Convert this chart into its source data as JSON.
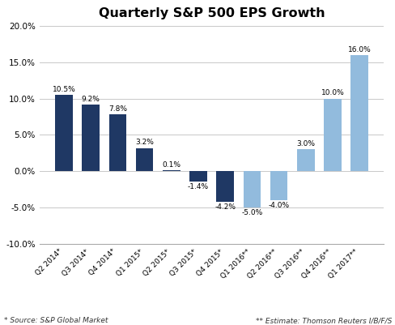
{
  "categories": [
    "Q2 2014*",
    "Q3 2014*",
    "Q4 2014*",
    "Q1 2015*",
    "Q2 2015*",
    "Q3 2015*",
    "Q4 2015*",
    "Q1 2016**",
    "Q2 2016**",
    "Q3 2016**",
    "Q4 2016**",
    "Q1 2017**"
  ],
  "values": [
    10.5,
    9.2,
    7.8,
    3.2,
    0.1,
    -1.4,
    -4.2,
    -5.0,
    -4.0,
    3.0,
    10.0,
    16.0
  ],
  "colors": [
    "#1F3864",
    "#1F3864",
    "#1F3864",
    "#1F3864",
    "#1F3864",
    "#1F3864",
    "#1F3864",
    "#92BBDD",
    "#92BBDD",
    "#92BBDD",
    "#92BBDD",
    "#92BBDD"
  ],
  "title": "Quarterly S&P 500 EPS Growth",
  "ylim": [
    -10.0,
    20.0
  ],
  "yticks": [
    -10.0,
    -5.0,
    0.0,
    5.0,
    10.0,
    15.0,
    20.0
  ],
  "footnote_left": "* Source: S&P Global Market",
  "footnote_right": "** Estimate: Thomson Reuters I/B/F/S",
  "label_fontsize": 6.5,
  "xtick_fontsize": 6.5,
  "ytick_fontsize": 7.5,
  "title_fontsize": 11.5,
  "footnote_fontsize": 6.5
}
